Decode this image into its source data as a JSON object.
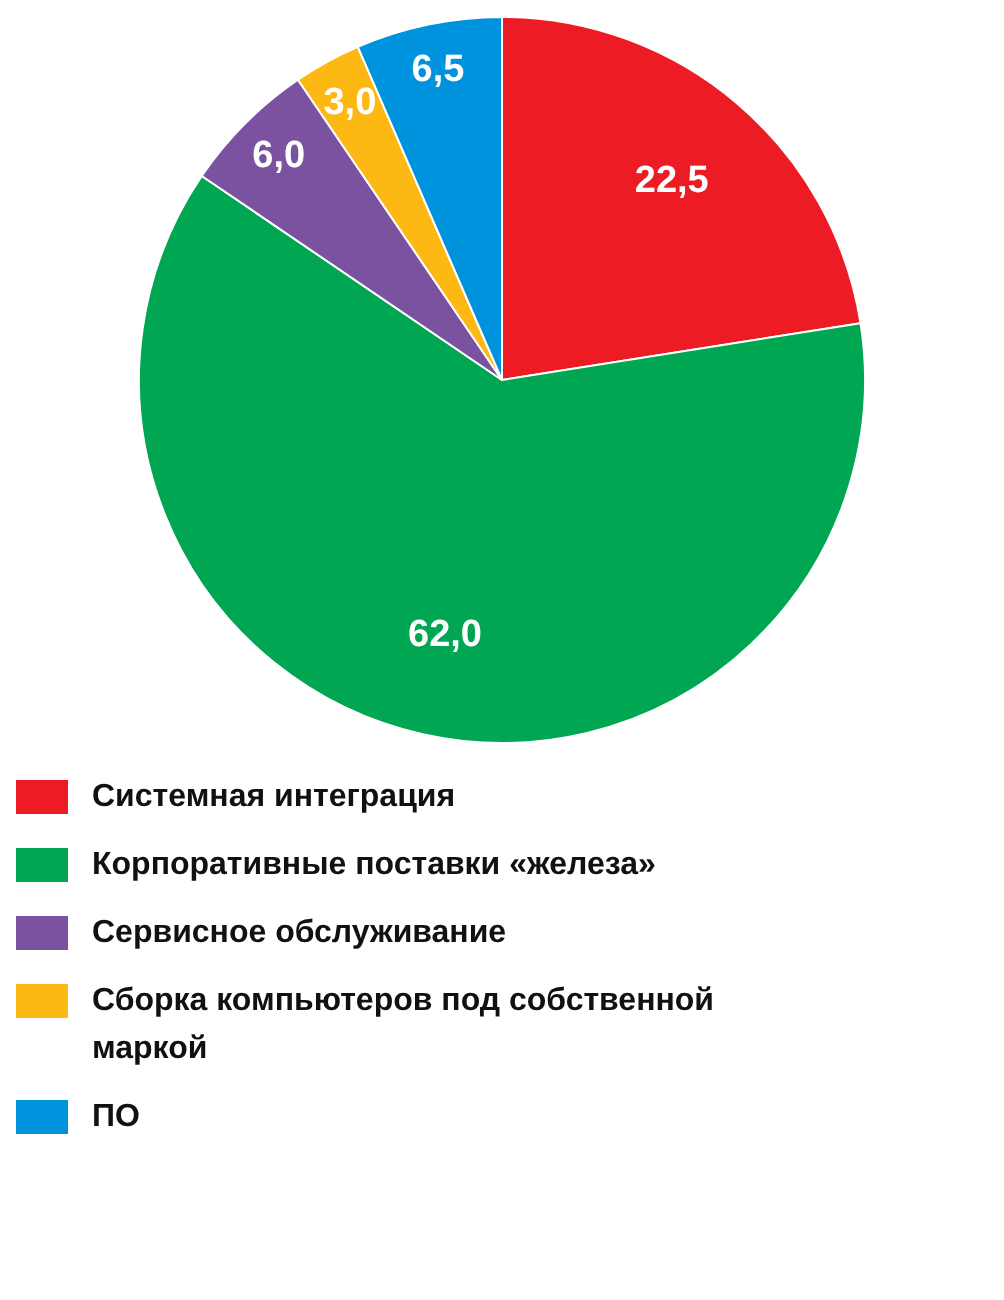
{
  "chart_data": {
    "type": "pie",
    "categories": [
      "Системная интеграция",
      "Корпоративные поставки «железа»",
      "Сервисное обслуживание",
      "Сборка компьютеров под собственной маркой",
      "ПО"
    ],
    "values": [
      22.5,
      62.0,
      6.0,
      3.0,
      6.5
    ],
    "value_labels": [
      "22,5",
      "62,0",
      "6,0",
      "3,0",
      "6,5"
    ],
    "colors": [
      "#ed1c24",
      "#00a651",
      "#7b52a0",
      "#fdb813",
      "#0093dd"
    ],
    "legend": "bottom"
  }
}
